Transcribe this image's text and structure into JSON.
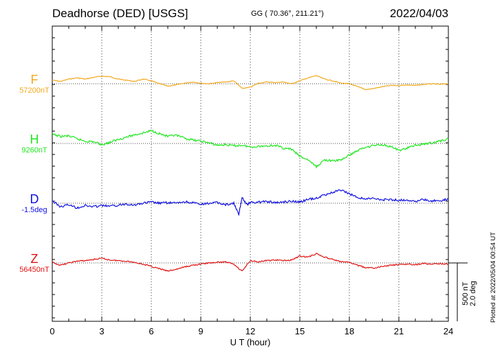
{
  "header": {
    "station": "Deadhorse (DED)  [USGS]",
    "coords": "GG ( 70.36°, 211.21°)",
    "date": "2022/04/03"
  },
  "footer": {
    "plotted": "Plotted at 2022/05/04 00:54 UT",
    "scale_line1": "500 nT",
    "scale_line2": "2.0 deg"
  },
  "chart_data": {
    "type": "line",
    "xlabel": "U T (hour)",
    "xlim": [
      0,
      24
    ],
    "xticks": [
      0,
      3,
      6,
      9,
      12,
      15,
      18,
      21,
      24
    ],
    "grid": true,
    "scale_bar": {
      "nT": 500,
      "deg": 2.0
    },
    "series": [
      {
        "name": "F",
        "baseline_label": "57200nT",
        "color": "#f2a81d",
        "unit": "nT",
        "baseline": 57200,
        "x": [
          0,
          0.5,
          1,
          1.5,
          2,
          2.5,
          3,
          3.5,
          4,
          4.5,
          5,
          5.5,
          6,
          6.5,
          7,
          7.5,
          8,
          8.5,
          9,
          9.5,
          10,
          10.5,
          11,
          11.5,
          12,
          12.5,
          13,
          13.5,
          14,
          14.5,
          15,
          15.5,
          16,
          16.5,
          17,
          17.5,
          18,
          18.5,
          19,
          19.5,
          20,
          20.5,
          21,
          21.5,
          22,
          22.5,
          23,
          23.5,
          24
        ],
        "y": [
          57230,
          57220,
          57240,
          57250,
          57240,
          57255,
          57265,
          57260,
          57240,
          57230,
          57220,
          57240,
          57225,
          57200,
          57180,
          57190,
          57205,
          57215,
          57205,
          57200,
          57210,
          57215,
          57225,
          57160,
          57170,
          57205,
          57215,
          57210,
          57215,
          57200,
          57225,
          57250,
          57270,
          57240,
          57225,
          57205,
          57200,
          57175,
          57150,
          57160,
          57175,
          57185,
          57185,
          57190,
          57185,
          57195,
          57200,
          57195,
          57200
        ]
      },
      {
        "name": "H",
        "baseline_label": "9260nT",
        "color": "#1fe61f",
        "unit": "nT",
        "baseline": 9260,
        "x": [
          0,
          0.5,
          1,
          1.5,
          2,
          2.5,
          3,
          3.5,
          4,
          4.5,
          5,
          5.5,
          6,
          6.5,
          7,
          7.5,
          8,
          8.5,
          9,
          9.5,
          10,
          10.5,
          11,
          11.5,
          12,
          12.5,
          13,
          13.5,
          14,
          14.5,
          15,
          15.5,
          16,
          16.5,
          17,
          17.5,
          18,
          18.5,
          19,
          19.5,
          20,
          20.5,
          21,
          21.5,
          22,
          22.5,
          23,
          23.5,
          24
        ],
        "y": [
          9340,
          9320,
          9325,
          9300,
          9280,
          9275,
          9250,
          9270,
          9295,
          9315,
          9335,
          9350,
          9370,
          9345,
          9320,
          9330,
          9305,
          9290,
          9280,
          9265,
          9245,
          9250,
          9240,
          9245,
          9230,
          9235,
          9240,
          9245,
          9220,
          9210,
          9150,
          9120,
          9060,
          9120,
          9110,
          9120,
          9160,
          9200,
          9230,
          9245,
          9250,
          9235,
          9200,
          9220,
          9245,
          9255,
          9265,
          9280,
          9300
        ]
      },
      {
        "name": "D",
        "baseline_label": "-1.5deg",
        "color": "#1010e0",
        "unit": "deg",
        "baseline": -1.5,
        "x": [
          0,
          0.5,
          1,
          1.5,
          2,
          2.5,
          3,
          3.5,
          4,
          4.5,
          5,
          5.5,
          6,
          6.5,
          7,
          7.5,
          8,
          8.5,
          9,
          9.5,
          10,
          10.5,
          11,
          11.3,
          11.5,
          11.8,
          12,
          12.5,
          13,
          13.5,
          14,
          14.5,
          15,
          15.5,
          16,
          16.5,
          17,
          17.5,
          18,
          18.5,
          19,
          19.5,
          20,
          20.5,
          21,
          21.5,
          22,
          22.5,
          23,
          23.5,
          24
        ],
        "y": [
          -1.42,
          -1.62,
          -1.55,
          -1.66,
          -1.58,
          -1.62,
          -1.58,
          -1.6,
          -1.57,
          -1.52,
          -1.56,
          -1.5,
          -1.46,
          -1.5,
          -1.48,
          -1.5,
          -1.45,
          -1.48,
          -1.55,
          -1.5,
          -1.48,
          -1.55,
          -1.5,
          -1.9,
          -1.3,
          -1.55,
          -1.48,
          -1.46,
          -1.44,
          -1.48,
          -1.46,
          -1.42,
          -1.46,
          -1.37,
          -1.32,
          -1.22,
          -1.12,
          -1.05,
          -1.18,
          -1.3,
          -1.35,
          -1.34,
          -1.38,
          -1.37,
          -1.4,
          -1.38,
          -1.44,
          -1.38,
          -1.42,
          -1.42,
          -1.34
        ]
      },
      {
        "name": "Z",
        "baseline_label": "56450nT",
        "color": "#e01010",
        "unit": "nT",
        "baseline": 56450,
        "x": [
          0,
          0.5,
          1,
          1.5,
          2,
          2.5,
          3,
          3.5,
          4,
          4.5,
          5,
          5.5,
          6,
          6.5,
          7,
          7.5,
          8,
          8.5,
          9,
          9.5,
          10,
          10.5,
          11,
          11.5,
          12,
          12.5,
          13,
          13.5,
          14,
          14.5,
          15,
          15.5,
          16,
          16.5,
          17,
          17.5,
          18,
          18.5,
          19,
          19.5,
          20,
          20.5,
          21,
          21.5,
          22,
          22.5,
          23,
          23.5,
          24
        ],
        "y": [
          56455,
          56430,
          56450,
          56465,
          56470,
          56480,
          56490,
          56475,
          56470,
          56465,
          56455,
          56440,
          56420,
          56400,
          56380,
          56395,
          56415,
          56430,
          56440,
          56450,
          56455,
          56460,
          56440,
          56380,
          56470,
          56460,
          56470,
          56475,
          56470,
          56475,
          56510,
          56500,
          56530,
          56500,
          56480,
          56460,
          56455,
          56430,
          56410,
          56405,
          56420,
          56430,
          56435,
          56440,
          56435,
          56445,
          56440,
          56445,
          56440
        ]
      }
    ]
  }
}
